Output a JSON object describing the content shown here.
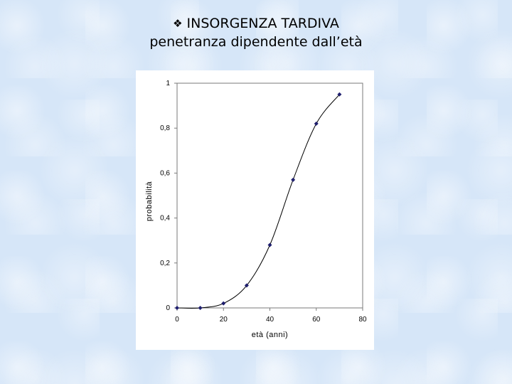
{
  "title": {
    "bullet_icon": "❖",
    "line1": "INSORGENZA TARDIVA",
    "line2": "penetranza dipendente dall’età"
  },
  "chart_data": {
    "type": "line",
    "title": "INSORGENZA TARDIVA",
    "subtitle": "penetranza dipendente dall’età",
    "xlabel": "età (anni)",
    "ylabel": "probabilità",
    "xlim": [
      0,
      80
    ],
    "ylim": [
      0,
      1
    ],
    "x_ticks": [
      0,
      20,
      40,
      60,
      80
    ],
    "x_tick_labels": [
      "0",
      "20",
      "40",
      "60",
      "80"
    ],
    "y_ticks": [
      0,
      0.2,
      0.4,
      0.6,
      0.8,
      1
    ],
    "y_tick_labels": [
      "0",
      "0,2",
      "0,4",
      "0,6",
      "0,8",
      "1"
    ],
    "grid": false,
    "legend": "none",
    "markers": "diamond",
    "series": [
      {
        "x": [
          0,
          10,
          20,
          30,
          40,
          50,
          60,
          70
        ],
        "y": [
          0,
          0.0,
          0.02,
          0.1,
          0.28,
          0.57,
          0.82,
          0.95
        ]
      }
    ],
    "colors": {
      "marker": "#1f1f6e",
      "line": "#000000"
    }
  }
}
